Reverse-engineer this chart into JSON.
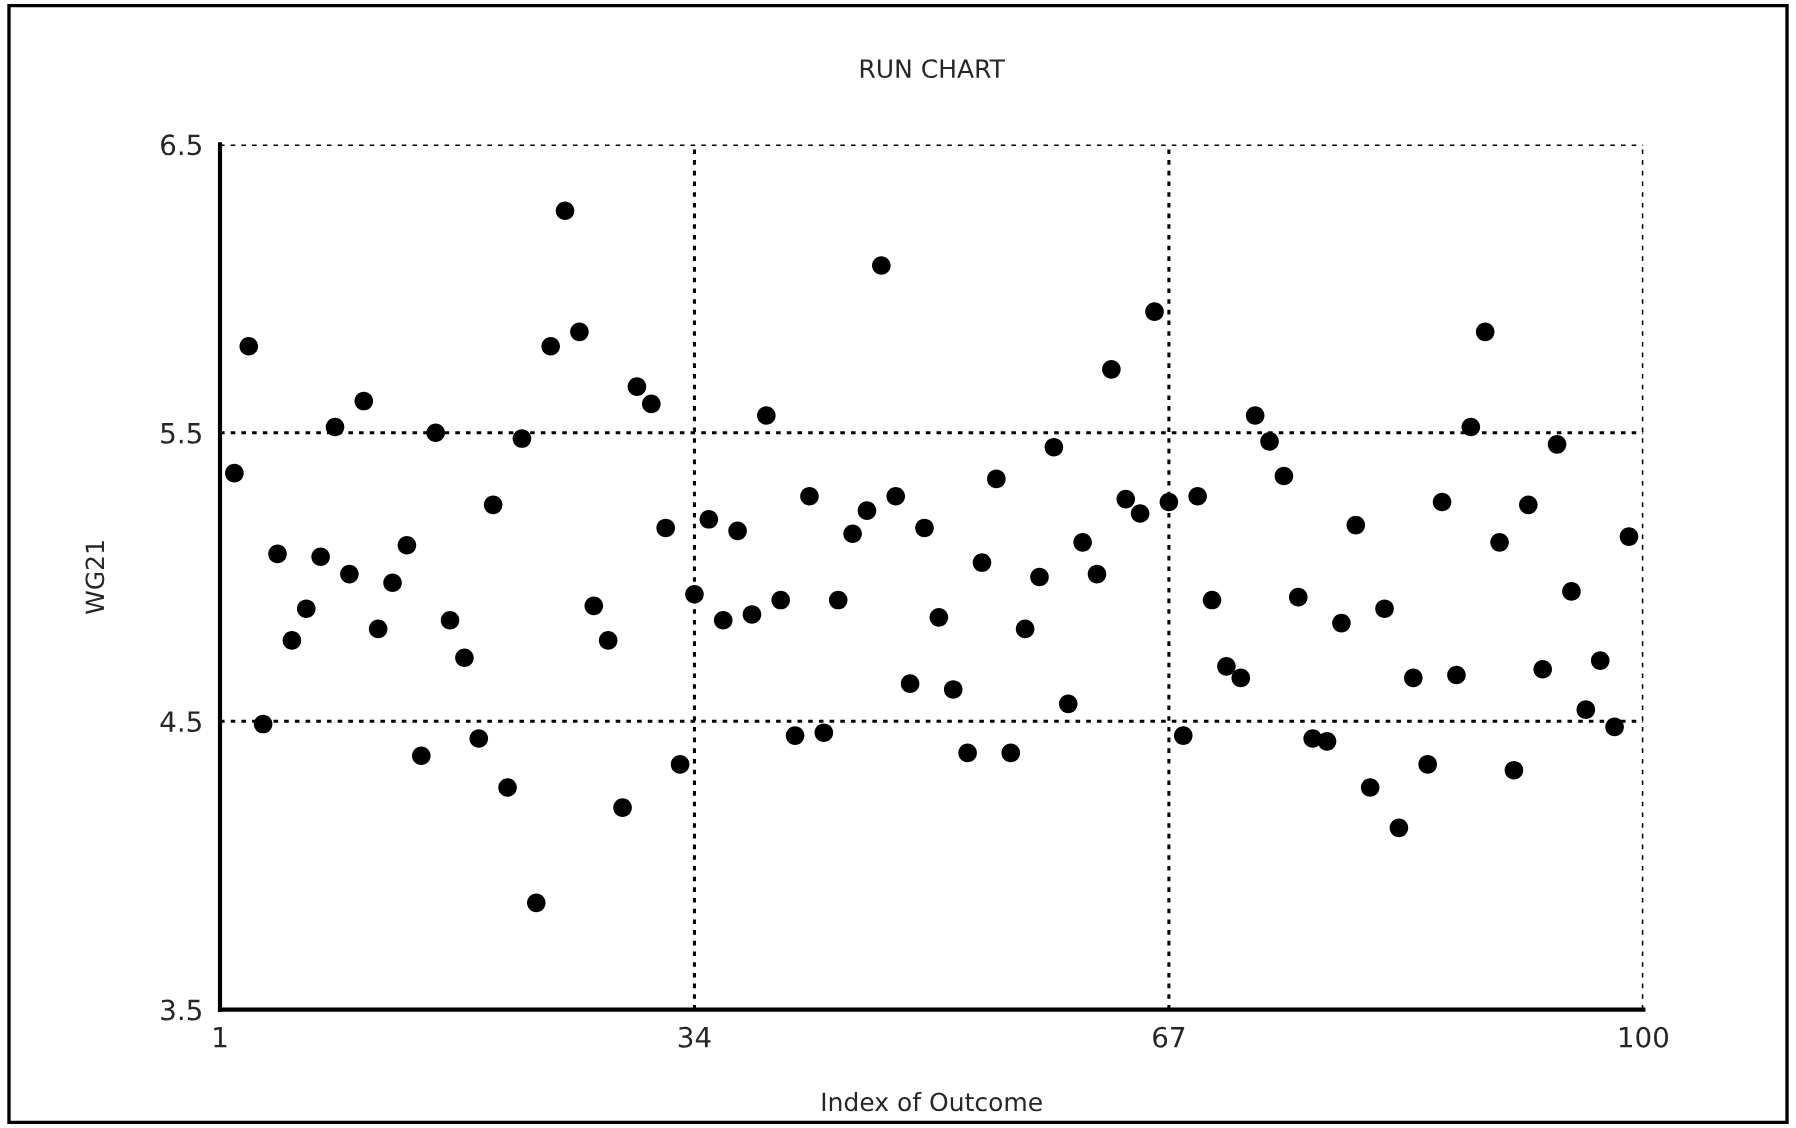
{
  "chart_data": {
    "type": "scatter",
    "title": "RUN CHART",
    "xlabel": "Index of Outcome",
    "ylabel": "WG21",
    "x": [
      2,
      3,
      4,
      5,
      6,
      7,
      8,
      9,
      10,
      11,
      12,
      13,
      14,
      15,
      16,
      17,
      18,
      19,
      20,
      21,
      22,
      23,
      24,
      25,
      26,
      27,
      28,
      29,
      30,
      31,
      32,
      33,
      34,
      35,
      36,
      37,
      38,
      39,
      40,
      41,
      42,
      43,
      44,
      45,
      46,
      47,
      48,
      49,
      50,
      51,
      52,
      53,
      54,
      55,
      56,
      57,
      58,
      59,
      60,
      61,
      62,
      63,
      64,
      65,
      66,
      67,
      68,
      69,
      70,
      71,
      72,
      73,
      74,
      75,
      76,
      77,
      78,
      79,
      80,
      81,
      82,
      83,
      84,
      85,
      86,
      87,
      88,
      89,
      90,
      91,
      92,
      93,
      94,
      95,
      96,
      97,
      98,
      99
    ],
    "series": [
      {
        "color": "#000000",
        "values": [
          5.36,
          5.8,
          4.49,
          5.08,
          4.78,
          4.89,
          5.07,
          5.52,
          5.01,
          5.61,
          4.82,
          4.98,
          5.11,
          4.38,
          5.5,
          4.85,
          4.72,
          4.44,
          5.25,
          4.27,
          5.48,
          3.87,
          5.8,
          6.27,
          5.85,
          4.9,
          4.78,
          4.2,
          5.66,
          5.6,
          5.17,
          4.35,
          4.94,
          5.2,
          4.85,
          5.16,
          4.87,
          5.56,
          4.92,
          4.45,
          5.28,
          4.46,
          4.92,
          5.15,
          5.23,
          6.08,
          5.28,
          4.63,
          5.17,
          4.86,
          4.61,
          4.39,
          5.05,
          5.34,
          4.39,
          4.82,
          5.0,
          5.45,
          4.56,
          5.12,
          5.01,
          5.72,
          5.27,
          5.22,
          5.92,
          5.26,
          4.45,
          5.28,
          4.92,
          4.69,
          4.65,
          5.56,
          5.47,
          5.35,
          4.93,
          4.44,
          4.43,
          4.84,
          5.18,
          4.27,
          4.89,
          4.13,
          4.65,
          4.35,
          5.26,
          4.66,
          5.52,
          5.85,
          5.12,
          4.33,
          5.25,
          4.68,
          5.46,
          4.95,
          4.54,
          4.71,
          4.48,
          5.14
        ]
      }
    ],
    "xlim": [
      1,
      100
    ],
    "xticks": [
      1,
      34,
      67,
      100
    ],
    "ylim": [
      3.5,
      6.5
    ],
    "yticks": [
      3.5,
      4.5,
      5.5,
      6.5
    ],
    "grid": true,
    "marker": "circle"
  }
}
